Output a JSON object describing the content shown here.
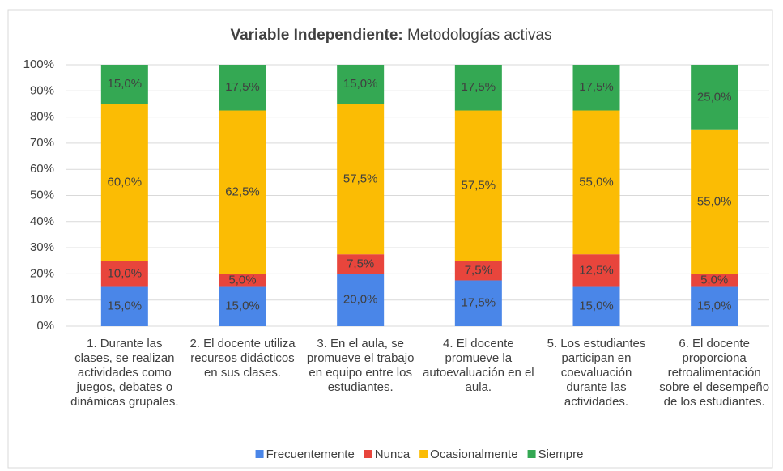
{
  "chart_data": {
    "type": "stacked_bar_100",
    "title": [
      "Variable Independiente:",
      "Metodologías activas"
    ],
    "categories": [
      "1. Durante las clases, se realizan actividades como juegos, debates o dinámicas grupales.",
      "2. El docente utiliza recursos didácticos en sus clases.",
      "3. En el aula, se promueve el trabajo en equipo entre los estudiantes.",
      "4. El docente promueve la autoevaluación en el aula.",
      "5. Los estudiantes participan en coevaluación durante las actividades.",
      "6. El docente proporciona retroalimentación sobre el desempeño de los estudiantes."
    ],
    "series": [
      {
        "name": "Frecuentemente",
        "color": "#4a86e8",
        "values": [
          15,
          15,
          20,
          17.5,
          15,
          15
        ],
        "value_labels": [
          "15,0%",
          "15,0%",
          "20,0%",
          "17,5%",
          "15,0%",
          "15,0%"
        ]
      },
      {
        "name": "Nunca",
        "color": "#e8453c",
        "values": [
          10,
          5,
          7.5,
          7.5,
          12.5,
          5
        ],
        "value_labels": [
          "10,0%",
          "5,0%",
          "7,5%",
          "7,5%",
          "12,5%",
          "5,0%"
        ]
      },
      {
        "name": "Ocasionalmente",
        "color": "#fbbc04",
        "values": [
          60,
          62.5,
          57.5,
          57.5,
          55,
          55
        ],
        "value_labels": [
          "60,0%",
          "62,5%",
          "57,5%",
          "57,5%",
          "55,0%",
          "55,0%"
        ]
      },
      {
        "name": "Siempre",
        "color": "#34a853",
        "values": [
          15,
          17.5,
          15,
          17.5,
          17.5,
          25
        ],
        "value_labels": [
          "15,0%",
          "17,5%",
          "15,0%",
          "17,5%",
          "17,5%",
          "25,0%"
        ]
      }
    ],
    "ylim": [
      0,
      100
    ],
    "yticks": [
      {
        "value": 0,
        "label": "0%"
      },
      {
        "value": 10,
        "label": "10%"
      },
      {
        "value": 20,
        "label": "20%"
      },
      {
        "value": 30,
        "label": "30%"
      },
      {
        "value": 40,
        "label": "40%"
      },
      {
        "value": 50,
        "label": "50%"
      },
      {
        "value": 60,
        "label": "60%"
      },
      {
        "value": 70,
        "label": "70%"
      },
      {
        "value": 80,
        "label": "80%"
      },
      {
        "value": 90,
        "label": "90%"
      },
      {
        "value": 100,
        "label": "100%"
      }
    ],
    "legend": "bottom"
  }
}
